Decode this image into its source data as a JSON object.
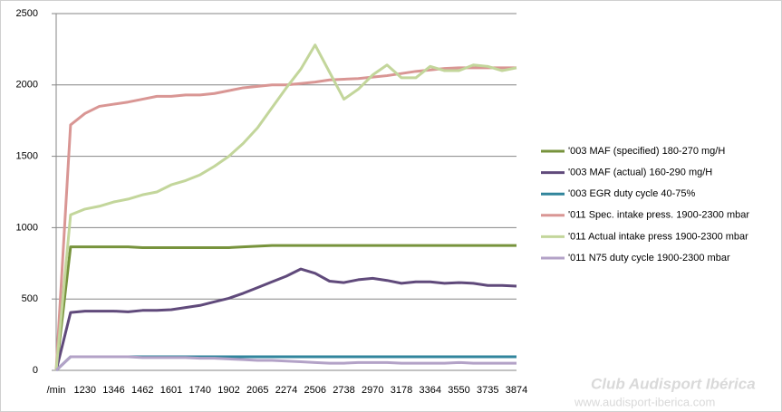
{
  "chart_data": {
    "type": "line",
    "categories": [
      "/min",
      null,
      "1230",
      null,
      "1346",
      null,
      "1462",
      null,
      "1601",
      null,
      "1740",
      null,
      "1902",
      null,
      "2065",
      null,
      "2274",
      null,
      "2506",
      null,
      "2738",
      null,
      "2970",
      null,
      "3178",
      null,
      "3364",
      null,
      "3550",
      null,
      "3735",
      null,
      "3874"
    ],
    "series": [
      {
        "name": "'003 MAF (specified) 180-270 mg/H",
        "color": "#77933c",
        "values": [
          0,
          865,
          865,
          865,
          865,
          865,
          860,
          860,
          860,
          860,
          860,
          860,
          860,
          865,
          870,
          875,
          875,
          875,
          875,
          875,
          875,
          875,
          875,
          875,
          875,
          875,
          875,
          875,
          875,
          875,
          875,
          875,
          875
        ]
      },
      {
        "name": "'003 MAF (actual)  160-290 mg/H",
        "color": "#604a7b",
        "values": [
          0,
          405,
          415,
          415,
          415,
          410,
          420,
          420,
          425,
          440,
          455,
          480,
          505,
          540,
          580,
          620,
          660,
          710,
          680,
          625,
          615,
          635,
          645,
          630,
          610,
          620,
          620,
          610,
          615,
          610,
          595,
          595,
          590
        ]
      },
      {
        "name": "'003 EGR duty cycle 40-75%",
        "color": "#31859c",
        "values": [
          0,
          95,
          95,
          95,
          95,
          95,
          95,
          95,
          95,
          95,
          95,
          95,
          95,
          95,
          95,
          95,
          95,
          95,
          95,
          95,
          95,
          95,
          95,
          95,
          95,
          95,
          95,
          95,
          95,
          95,
          95,
          95,
          95
        ]
      },
      {
        "name": "'011 Spec. intake press. 1900-2300 mbar",
        "color": "#d99694",
        "values": [
          0,
          1720,
          1800,
          1850,
          1865,
          1880,
          1900,
          1920,
          1920,
          1930,
          1930,
          1940,
          1960,
          1980,
          1990,
          2000,
          2000,
          2010,
          2020,
          2035,
          2040,
          2045,
          2055,
          2065,
          2080,
          2095,
          2105,
          2115,
          2120,
          2120,
          2120,
          2120,
          2120
        ]
      },
      {
        "name": "'011 Actual intake press 1900-2300 mbar",
        "color": "#c3d69b",
        "values": [
          0,
          1090,
          1130,
          1150,
          1180,
          1200,
          1230,
          1250,
          1300,
          1330,
          1370,
          1430,
          1500,
          1590,
          1700,
          1840,
          1980,
          2110,
          2280,
          2090,
          1900,
          1970,
          2070,
          2140,
          2050,
          2050,
          2130,
          2100,
          2100,
          2140,
          2130,
          2100,
          2120
        ]
      },
      {
        "name": "'011 N75 duty cycle 1900-2300 mbar",
        "color": "#b3a2c7",
        "values": [
          0,
          95,
          95,
          95,
          95,
          95,
          90,
          90,
          90,
          90,
          85,
          85,
          80,
          75,
          70,
          70,
          65,
          60,
          55,
          50,
          50,
          55,
          55,
          55,
          50,
          50,
          50,
          50,
          55,
          50,
          50,
          50,
          50
        ]
      }
    ],
    "ylim": [
      0,
      2500
    ],
    "yticks": [
      0,
      500,
      1000,
      1500,
      2000,
      2500
    ],
    "grid": true,
    "legend": "right",
    "watermark": [
      "Club Audisport Ibérica",
      "www.audisport-iberica.com"
    ]
  }
}
